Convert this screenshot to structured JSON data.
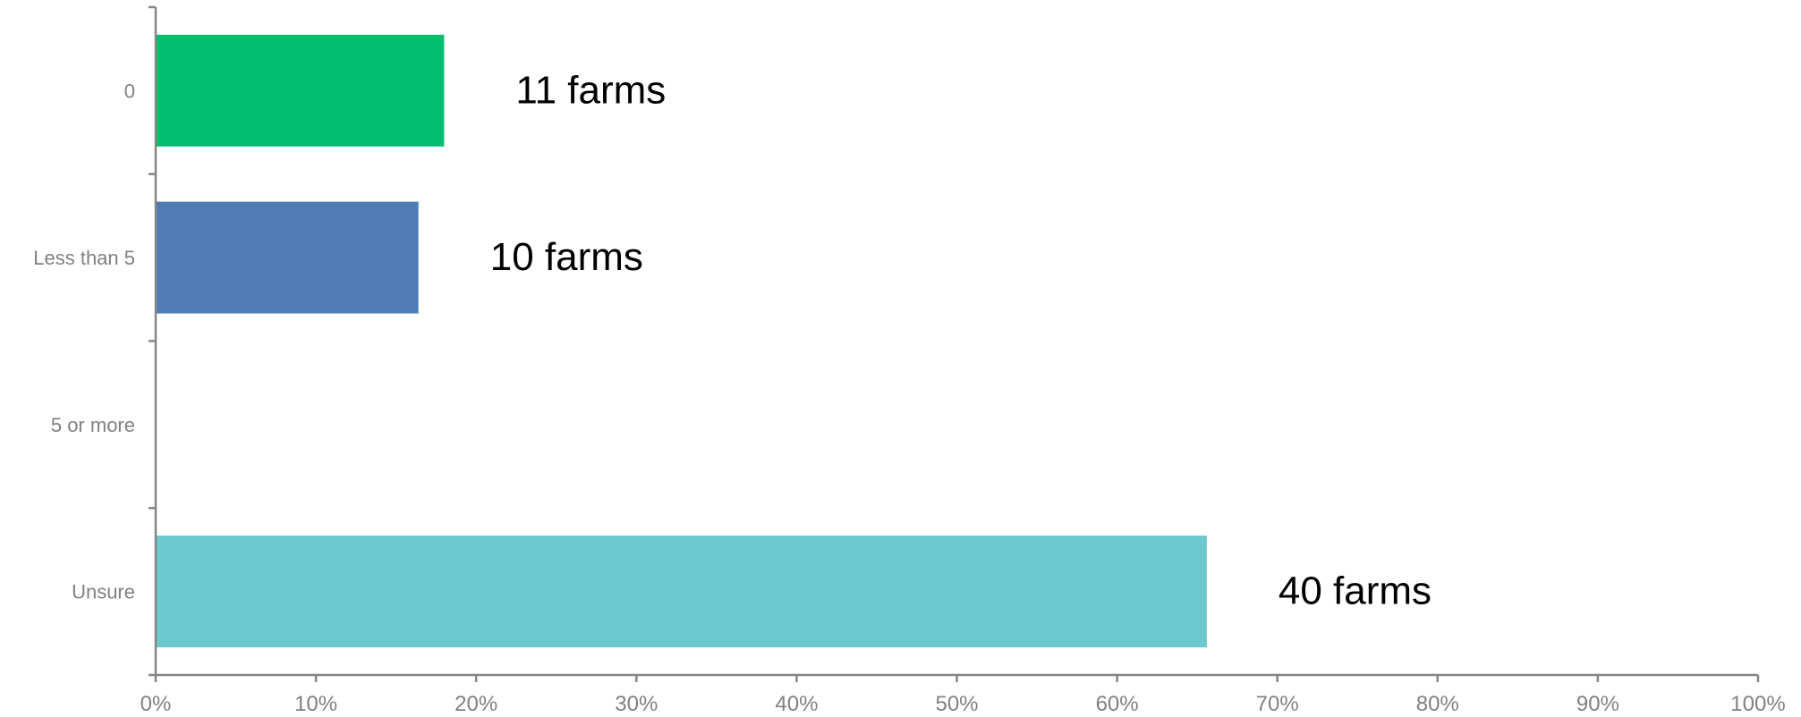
{
  "chart_data": {
    "type": "bar",
    "orientation": "horizontal",
    "title": "",
    "xlabel": "",
    "ylabel": "",
    "categories": [
      "0",
      "Less than 5",
      "5 or more",
      "Unsure"
    ],
    "values": [
      18.0,
      16.4,
      0,
      65.6
    ],
    "value_unit": "percent",
    "data_labels": [
      "11 farms",
      "10 farms",
      "",
      "40 farms"
    ],
    "bar_colors": [
      "#00BF6F",
      "#507CB6",
      "#F9BE00",
      "#6BC8CD"
    ],
    "xlim": [
      0,
      100
    ],
    "x_ticks": [
      0,
      10,
      20,
      30,
      40,
      50,
      60,
      70,
      80,
      90,
      100
    ],
    "x_tick_labels": [
      "0%",
      "10%",
      "20%",
      "30%",
      "40%",
      "50%",
      "60%",
      "70%",
      "80%",
      "90%",
      "100%"
    ],
    "grid": false,
    "legend": "none"
  }
}
